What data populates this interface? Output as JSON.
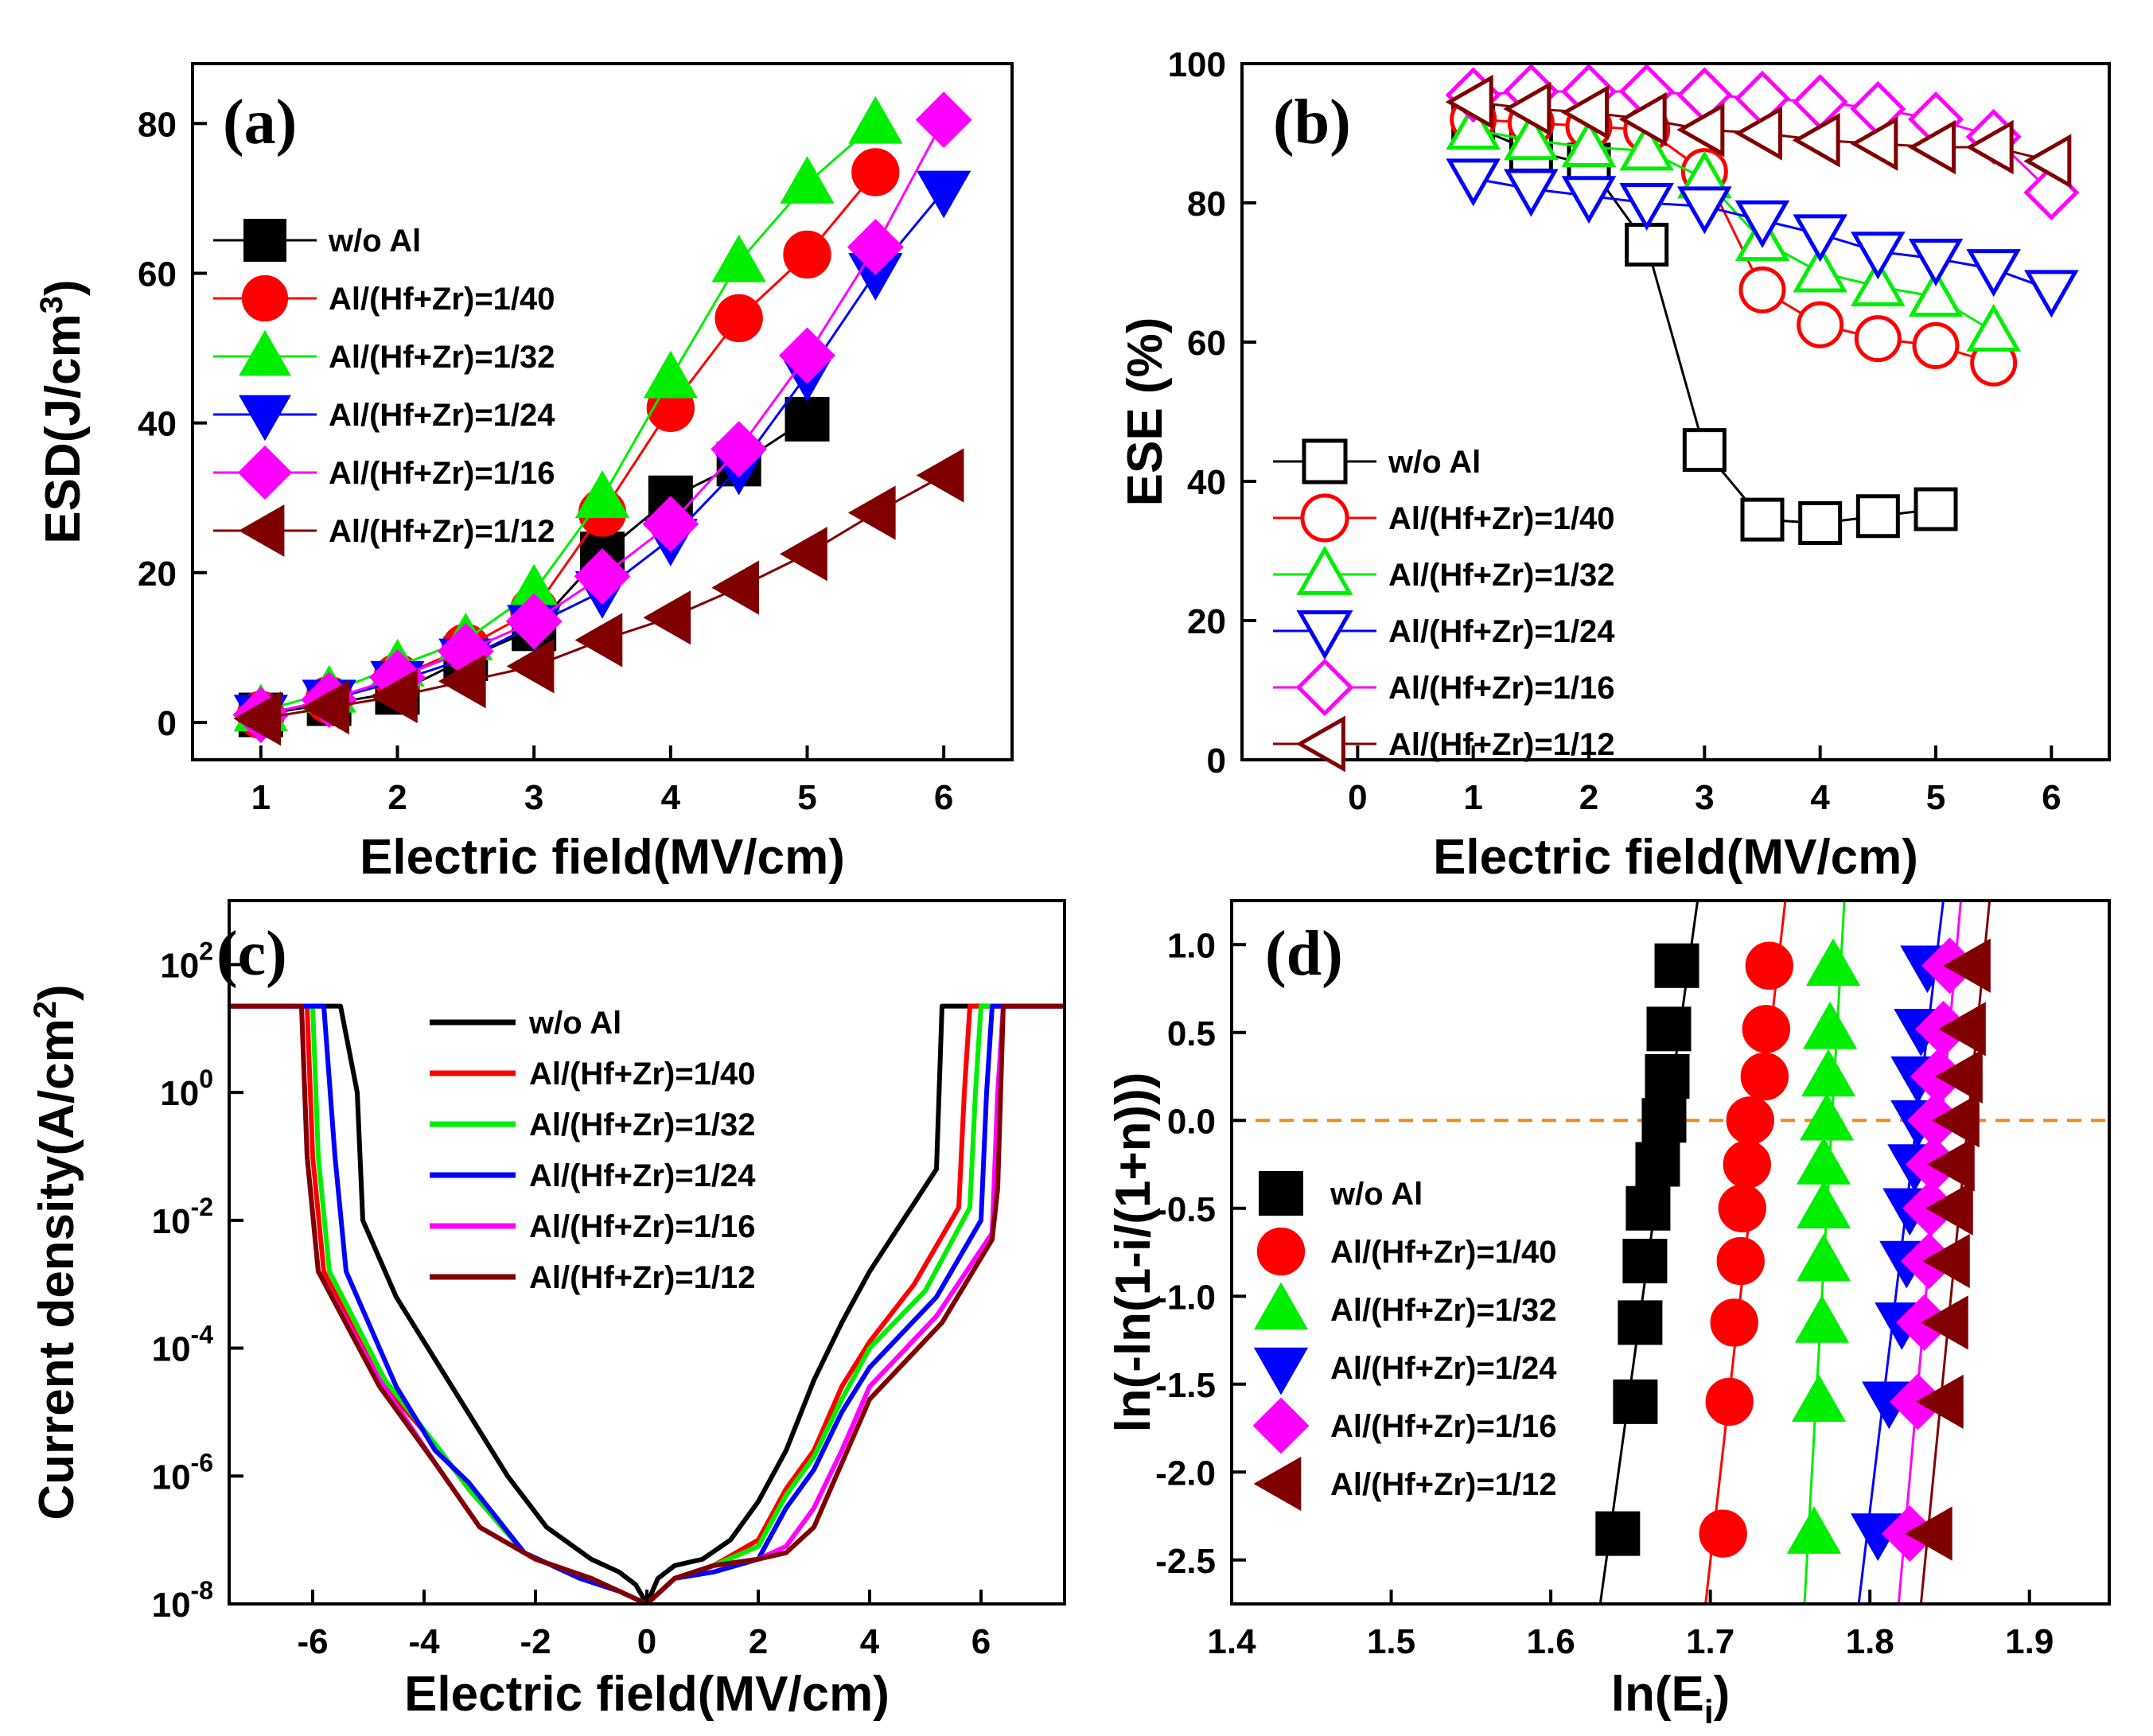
{
  "series_names": [
    "w/o Al",
    "Al/(Hf+Zr)=1/40",
    "Al/(Hf+Zr)=1/32",
    "Al/(Hf+Zr)=1/24",
    "Al/(Hf+Zr)=1/16",
    "Al/(Hf+Zr)=1/12"
  ],
  "chart_data": [
    {
      "id": "a",
      "panel_label": "(a)",
      "type": "line",
      "marker_style": "filled",
      "xlabel": "Electric field(MV/cm)",
      "ylabel_main": "ESD(J/cm",
      "ylabel_sup": "3",
      "ylabel_end": ")",
      "xlim": [
        0.5,
        6.5
      ],
      "ylim": [
        -5,
        88
      ],
      "xticks": [
        1,
        2,
        3,
        4,
        5,
        6
      ],
      "yticks": [
        0,
        20,
        40,
        60,
        80
      ],
      "legend_position": "upper-left",
      "series": [
        {
          "name": "w/o Al",
          "color": "#000000",
          "marker": "square",
          "x": [
            1,
            1.5,
            2,
            2.5,
            3,
            3.5,
            4,
            4.5,
            5
          ],
          "y": [
            1,
            2.5,
            4,
            8.5,
            12.5,
            22.5,
            30,
            34.5,
            40.5
          ]
        },
        {
          "name": "Al/(Hf+Zr)=1/40",
          "color": "#ff0000",
          "marker": "circle",
          "x": [
            1,
            1.5,
            2,
            2.5,
            3,
            3.5,
            4,
            4.5,
            5,
            5.5
          ],
          "y": [
            1,
            3,
            6,
            10,
            15,
            28,
            42,
            54,
            62.5,
            73.5
          ]
        },
        {
          "name": "Al/(Hf+Zr)=1/32",
          "color": "#00ee00",
          "marker": "triangle-up",
          "x": [
            1,
            1.5,
            2,
            2.5,
            3,
            3.5,
            4,
            4.5,
            5,
            5.5
          ],
          "y": [
            1.5,
            4,
            7.5,
            11,
            17.5,
            30,
            46,
            61.5,
            72,
            80
          ]
        },
        {
          "name": "Al/(Hf+Zr)=1/24",
          "color": "#0000ff",
          "marker": "triangle-down",
          "x": [
            1,
            1.5,
            2,
            2.5,
            3,
            3.5,
            4,
            4.5,
            5,
            5.5,
            6
          ],
          "y": [
            1,
            3,
            5.5,
            8.5,
            13,
            17.5,
            24.5,
            34,
            46.5,
            60,
            71
          ]
        },
        {
          "name": "Al/(Hf+Zr)=1/16",
          "color": "#ff00ff",
          "marker": "diamond",
          "x": [
            1,
            1.5,
            2,
            2.5,
            3,
            3.5,
            4,
            4.5,
            5,
            5.5,
            6
          ],
          "y": [
            1,
            3,
            6,
            9.5,
            13.5,
            19.5,
            26.5,
            36.5,
            49,
            63.5,
            80.5
          ]
        },
        {
          "name": "Al/(Hf+Zr)=1/12",
          "color": "#800000",
          "marker": "triangle-left",
          "x": [
            1,
            1.5,
            2,
            2.5,
            3,
            3.5,
            4,
            4.5,
            5,
            5.5,
            6
          ],
          "y": [
            0.5,
            2,
            3.5,
            5.5,
            7.5,
            11,
            14,
            18,
            22.5,
            28,
            33
          ]
        }
      ]
    },
    {
      "id": "b",
      "panel_label": "(b)",
      "type": "line",
      "marker_style": "open",
      "xlabel": "Electric field(MV/cm)",
      "ylabel": "ESE (%)",
      "xlim": [
        -1,
        6.5
      ],
      "ylim": [
        0,
        100
      ],
      "xticks": [
        0,
        1,
        2,
        3,
        4,
        5,
        6
      ],
      "yticks": [
        0,
        20,
        40,
        60,
        80,
        100
      ],
      "legend_position": "lower-left",
      "series": [
        {
          "name": "w/o Al",
          "color": "#000000",
          "marker": "square",
          "x": [
            1,
            1.5,
            2,
            2.5,
            3,
            3.5,
            4,
            4.5,
            5
          ],
          "y": [
            91,
            87.5,
            85.5,
            74,
            44.5,
            34.5,
            34,
            35,
            36
          ]
        },
        {
          "name": "Al/(Hf+Zr)=1/40",
          "color": "#ff0000",
          "marker": "circle",
          "x": [
            1,
            1.5,
            2,
            2.5,
            3,
            3.5,
            4,
            4.5,
            5,
            5.5
          ],
          "y": [
            92,
            91.5,
            91,
            90.5,
            84.5,
            67.5,
            62.5,
            60.5,
            59.5,
            57
          ]
        },
        {
          "name": "Al/(Hf+Zr)=1/32",
          "color": "#00ee00",
          "marker": "triangle-up",
          "x": [
            1,
            1.5,
            2,
            2.5,
            3,
            3.5,
            4,
            4.5,
            5,
            5.5
          ],
          "y": [
            90.5,
            89,
            88,
            87.5,
            83.5,
            74.5,
            70,
            68,
            66.5,
            61.5
          ]
        },
        {
          "name": "Al/(Hf+Zr)=1/24",
          "color": "#0000ff",
          "marker": "triangle-down",
          "x": [
            1,
            1.5,
            2,
            2.5,
            3,
            3.5,
            4,
            4.5,
            5,
            5.5,
            6
          ],
          "y": [
            83.5,
            82,
            81,
            80,
            79.5,
            77.5,
            75.5,
            73,
            72,
            70.5,
            67.5
          ]
        },
        {
          "name": "Al/(Hf+Zr)=1/16",
          "color": "#ff00ff",
          "marker": "diamond",
          "x": [
            1,
            1.5,
            2,
            2.5,
            3,
            3.5,
            4,
            4.5,
            5,
            5.5,
            6
          ],
          "y": [
            95.5,
            96,
            96,
            96,
            95.5,
            95,
            94.5,
            93.5,
            92,
            89.5,
            81.5
          ]
        },
        {
          "name": "Al/(Hf+Zr)=1/12",
          "color": "#800000",
          "marker": "triangle-left",
          "x": [
            1,
            1.5,
            2,
            2.5,
            3,
            3.5,
            4,
            4.5,
            5,
            5.5,
            6
          ],
          "y": [
            94.5,
            93.5,
            93,
            92,
            90.5,
            90,
            89,
            88.5,
            88,
            88,
            86
          ]
        }
      ]
    },
    {
      "id": "c",
      "panel_label": "(c)",
      "type": "line",
      "yscale": "log",
      "xlabel": "Electric field(MV/cm)",
      "ylabel_main": "Current density(A/cm",
      "ylabel_sup": "2",
      "ylabel_end": ")",
      "xlim": [
        -7.5,
        7.5
      ],
      "ylim_log10": [
        -8,
        3
      ],
      "xticks": [
        -6,
        -4,
        -2,
        0,
        2,
        4,
        6
      ],
      "yticks_log10": [
        -8,
        -6,
        -4,
        -2,
        0,
        2
      ],
      "ytick_base": "10",
      "legend_position": "upper-center",
      "series": [
        {
          "name": "w/o Al",
          "color": "#000000",
          "x": [
            -7.5,
            -5.5,
            -5.5,
            -5.2,
            -5.1,
            -4.5,
            -3.5,
            -2.5,
            -1.8,
            -1,
            -0.5,
            -0.2,
            0,
            0.2,
            0.5,
            1,
            1.5,
            2,
            2.5,
            3,
            3.5,
            4,
            5.2,
            5.3,
            5.3,
            7.5
          ],
          "log10_y": [
            1.35,
            1.35,
            1.35,
            0,
            -2,
            -3.2,
            -4.6,
            -6,
            -6.8,
            -7.3,
            -7.5,
            -7.7,
            -8,
            -7.6,
            -7.4,
            -7.3,
            -7,
            -6.4,
            -5.6,
            -4.5,
            -3.6,
            -2.8,
            -1.2,
            1.35,
            1.35,
            1.35
          ]
        },
        {
          "name": "Al/(Hf+Zr)=1/40",
          "color": "#ff0000",
          "x": [
            -7.5,
            -6.2,
            -6.1,
            -6.0,
            -5.8,
            -4.8,
            -3.8,
            -3.2,
            -2.2,
            -1.2,
            -0.5,
            0,
            0.5,
            1.2,
            2,
            2.5,
            3,
            3.5,
            4,
            4.8,
            5.6,
            5.7,
            5.8,
            7.5
          ],
          "log10_y": [
            1.35,
            1.35,
            1.35,
            -1,
            -2.8,
            -4.5,
            -5.5,
            -6.2,
            -7.2,
            -7.6,
            -7.8,
            -8,
            -7.6,
            -7.4,
            -7,
            -6.2,
            -5.6,
            -4.6,
            -3.9,
            -3,
            -1.8,
            0,
            1.35,
            1.35
          ]
        },
        {
          "name": "Al/(Hf+Zr)=1/32",
          "color": "#00ee00",
          "x": [
            -7.5,
            -6.1,
            -6.0,
            -5.9,
            -5.7,
            -4.7,
            -3.8,
            -3.2,
            -2.2,
            -1.2,
            -0.5,
            0,
            0.5,
            1.2,
            2,
            2.5,
            3,
            3.5,
            4,
            5,
            5.8,
            5.9,
            6.0,
            7.5
          ],
          "log10_y": [
            1.35,
            1.35,
            1.35,
            -1,
            -2.8,
            -4.5,
            -5.5,
            -6.2,
            -7.2,
            -7.6,
            -7.8,
            -8,
            -7.6,
            -7.4,
            -7.1,
            -6.3,
            -5.7,
            -4.8,
            -4.0,
            -3.1,
            -1.8,
            0,
            1.35,
            1.35
          ]
        },
        {
          "name": "Al/(Hf+Zr)=1/24",
          "color": "#0000ff",
          "x": [
            -7.5,
            -5.9,
            -5.8,
            -5.6,
            -5.4,
            -4.5,
            -3.8,
            -3.2,
            -2.2,
            -1.2,
            -0.5,
            0,
            0.5,
            1.2,
            2,
            2.5,
            3,
            3.5,
            4,
            5.2,
            6.0,
            6.1,
            6.2,
            7.5
          ],
          "log10_y": [
            1.35,
            1.35,
            1.35,
            -1,
            -2.8,
            -4.6,
            -5.6,
            -6.1,
            -7.2,
            -7.6,
            -7.8,
            -8,
            -7.6,
            -7.5,
            -7.3,
            -6.5,
            -5.9,
            -5.0,
            -4.3,
            -3.2,
            -2.0,
            0,
            1.35,
            1.35
          ]
        },
        {
          "name": "Al/(Hf+Zr)=1/16",
          "color": "#ff00ff",
          "x": [
            -7.5,
            -6.3,
            -6.2,
            -6.1,
            -5.9,
            -4.8,
            -3.8,
            -3.0,
            -2.0,
            -1.0,
            -0.5,
            0,
            0.5,
            1.2,
            2,
            2.5,
            3,
            3.5,
            4,
            5.2,
            6.2,
            6.3,
            6.4,
            7.5
          ],
          "log10_y": [
            1.35,
            1.35,
            1.35,
            -1,
            -2.8,
            -4.5,
            -5.8,
            -6.8,
            -7.3,
            -7.6,
            -7.8,
            -8,
            -7.6,
            -7.4,
            -7.3,
            -7.1,
            -6.5,
            -5.6,
            -4.6,
            -3.5,
            -2.2,
            0,
            1.35,
            1.35
          ]
        },
        {
          "name": "Al/(Hf+Zr)=1/12",
          "color": "#800000",
          "x": [
            -7.5,
            -6.3,
            -6.2,
            -6.1,
            -5.9,
            -4.8,
            -3.8,
            -3.0,
            -2.0,
            -1.0,
            -0.5,
            0,
            0.5,
            1.2,
            2,
            2.5,
            3,
            3.5,
            4,
            5.3,
            6.2,
            6.3,
            6.4,
            7.5
          ],
          "log10_y": [
            1.35,
            1.35,
            1.35,
            -1,
            -2.8,
            -4.6,
            -5.8,
            -6.8,
            -7.3,
            -7.6,
            -7.8,
            -8,
            -7.6,
            -7.4,
            -7.3,
            -7.2,
            -6.8,
            -5.8,
            -4.8,
            -3.6,
            -2.3,
            -1.5,
            1.35,
            1.35
          ]
        }
      ]
    },
    {
      "id": "d",
      "panel_label": "(d)",
      "type": "scatter",
      "marker_style": "filled",
      "xlabel_main": "ln(E",
      "xlabel_sub": "i",
      "xlabel_end": ")",
      "ylabel": "ln(-ln(1-i/(1+n)))",
      "xlim": [
        1.4,
        1.95
      ],
      "ylim": [
        -2.75,
        1.25
      ],
      "xticks": [
        1.4,
        1.5,
        1.6,
        1.7,
        1.8,
        1.9
      ],
      "yticks": [
        -2.5,
        -2.0,
        -1.5,
        -1.0,
        -0.5,
        0.0,
        0.5,
        1.0
      ],
      "reference_line_y": 0,
      "legend_position": "lower-left",
      "series": [
        {
          "name": "w/o Al",
          "color": "#000000",
          "marker": "square",
          "x": [
            1.642,
            1.653,
            1.656,
            1.659,
            1.661,
            1.667,
            1.671,
            1.673,
            1.674,
            1.679
          ],
          "y": [
            -2.35,
            -1.6,
            -1.15,
            -0.8,
            -0.5,
            -0.25,
            0.0,
            0.25,
            0.52,
            0.88
          ],
          "fit_x": [
            1.631,
            1.692
          ],
          "fit_y": [
            -2.75,
            1.25
          ]
        },
        {
          "name": "Al/(Hf+Zr)=1/40",
          "color": "#ff0000",
          "marker": "circle",
          "x": [
            1.708,
            1.712,
            1.715,
            1.719,
            1.72,
            1.723,
            1.725,
            1.734,
            1.735,
            1.737
          ],
          "y": [
            -2.35,
            -1.6,
            -1.15,
            -0.8,
            -0.5,
            -0.25,
            0.0,
            0.25,
            0.52,
            0.88
          ],
          "fit_x": [
            1.697,
            1.747
          ],
          "fit_y": [
            -2.75,
            1.25
          ]
        },
        {
          "name": "Al/(Hf+Zr)=1/32",
          "color": "#00ee00",
          "marker": "triangle-up",
          "x": [
            1.765,
            1.768,
            1.77,
            1.771,
            1.771,
            1.771,
            1.773,
            1.774,
            1.775,
            1.777
          ],
          "y": [
            -2.35,
            -1.6,
            -1.15,
            -0.8,
            -0.5,
            -0.25,
            0.0,
            0.25,
            0.52,
            0.88
          ],
          "fit_x": [
            1.759,
            1.784
          ],
          "fit_y": [
            -2.75,
            1.25
          ]
        },
        {
          "name": "Al/(Hf+Zr)=1/24",
          "color": "#0000ff",
          "marker": "triangle-down",
          "x": [
            1.805,
            1.812,
            1.82,
            1.823,
            1.825,
            1.828,
            1.83,
            1.83,
            1.832,
            1.836
          ],
          "y": [
            -2.35,
            -1.6,
            -1.15,
            -0.8,
            -0.5,
            -0.25,
            0.0,
            0.25,
            0.52,
            0.88
          ],
          "fit_x": [
            1.793,
            1.846
          ],
          "fit_y": [
            -2.75,
            1.25
          ]
        },
        {
          "name": "Al/(Hf+Zr)=1/16",
          "color": "#ff00ff",
          "marker": "diamond",
          "x": [
            1.825,
            1.83,
            1.834,
            1.837,
            1.838,
            1.84,
            1.841,
            1.843,
            1.846,
            1.85
          ],
          "y": [
            -2.35,
            -1.6,
            -1.15,
            -0.8,
            -0.5,
            -0.25,
            0.0,
            0.25,
            0.52,
            0.88
          ],
          "fit_x": [
            1.818,
            1.857
          ],
          "fit_y": [
            -2.75,
            1.25
          ]
        },
        {
          "name": "Al/(Hf+Zr)=1/12",
          "color": "#800000",
          "marker": "triangle-left",
          "x": [
            1.839,
            1.846,
            1.849,
            1.85,
            1.852,
            1.853,
            1.856,
            1.858,
            1.86,
            1.863
          ],
          "y": [
            -2.35,
            -1.6,
            -1.15,
            -0.8,
            -0.5,
            -0.25,
            0.0,
            0.25,
            0.52,
            0.88
          ],
          "fit_x": [
            1.832,
            1.875
          ],
          "fit_y": [
            -2.75,
            1.25
          ]
        }
      ]
    }
  ]
}
